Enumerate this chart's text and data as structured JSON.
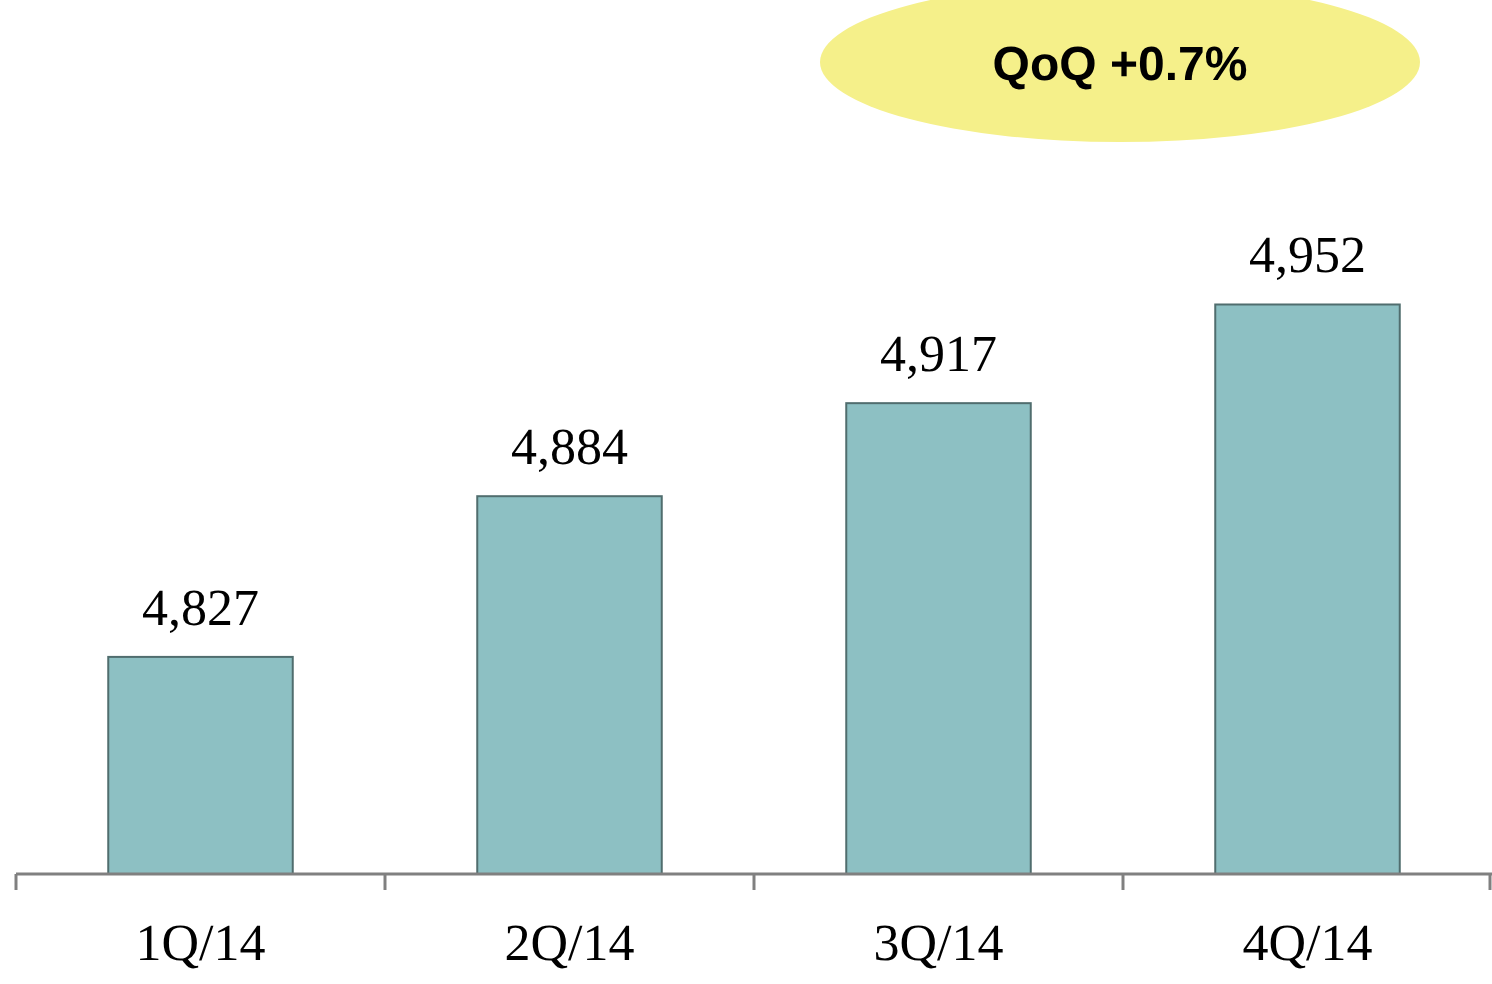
{
  "chart_data": {
    "type": "bar",
    "categories": [
      "1Q/14",
      "2Q/14",
      "3Q/14",
      "4Q/14"
    ],
    "values": [
      4827,
      4884,
      4917,
      4952
    ],
    "value_labels": [
      "4,827",
      "4,884",
      "4,917",
      "4,952"
    ],
    "color": "#8dc0c3",
    "ylim": [
      4750,
      5060
    ],
    "annotations": [
      "QoQ +0.7%"
    ]
  }
}
